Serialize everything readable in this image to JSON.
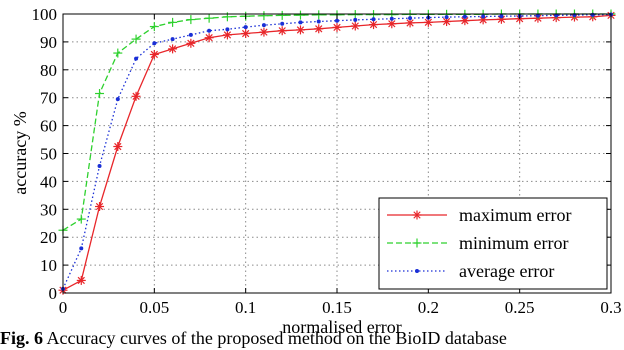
{
  "chart_data": {
    "type": "line",
    "xlabel": "normalised error",
    "ylabel": "accuracy %",
    "xlim": [
      0,
      0.3
    ],
    "ylim": [
      0,
      100
    ],
    "xticks": [
      0,
      0.05,
      0.1,
      0.15,
      0.2,
      0.25,
      0.3
    ],
    "xtick_labels": [
      "0",
      "0.05",
      "0.1",
      "0.15",
      "0.2",
      "0.25",
      "0.3"
    ],
    "yticks": [
      0,
      10,
      20,
      30,
      40,
      50,
      60,
      70,
      80,
      90,
      100
    ],
    "ytick_labels": [
      "0",
      "10",
      "20",
      "30",
      "40",
      "50",
      "60",
      "70",
      "80",
      "90",
      "100"
    ],
    "grid": true,
    "legend_position": "bottom-right",
    "x": [
      0,
      0.01,
      0.02,
      0.03,
      0.04,
      0.05,
      0.06,
      0.07,
      0.08,
      0.09,
      0.1,
      0.11,
      0.12,
      0.13,
      0.14,
      0.15,
      0.16,
      0.17,
      0.18,
      0.19,
      0.2,
      0.21,
      0.22,
      0.23,
      0.24,
      0.25,
      0.26,
      0.27,
      0.28,
      0.29,
      0.3
    ],
    "series": [
      {
        "name": "maximum error",
        "color": "#e8262a",
        "line_style": "solid",
        "marker": "asterisk",
        "values": [
          1,
          4.5,
          31,
          52.5,
          70.5,
          85.5,
          87.5,
          89.5,
          91.5,
          92.5,
          93,
          93.5,
          94,
          94.3,
          94.7,
          95.2,
          95.7,
          96.2,
          96.5,
          96.8,
          97,
          97.3,
          97.6,
          97.9,
          98.1,
          98.3,
          98.5,
          98.7,
          98.9,
          99,
          99.5
        ]
      },
      {
        "name": "minimum error",
        "color": "#2ed12e",
        "line_style": "dashed",
        "marker": "plus",
        "values": [
          22.5,
          26.5,
          71.5,
          86,
          91,
          95.5,
          97,
          98,
          98.5,
          99,
          99.2,
          99.4,
          99.5,
          99.6,
          99.7,
          99.7,
          99.8,
          99.8,
          99.8,
          99.9,
          99.9,
          99.9,
          99.9,
          99.9,
          100,
          100,
          100,
          100,
          100,
          100,
          100
        ]
      },
      {
        "name": "average error",
        "color": "#1a2fd6",
        "line_style": "dotted",
        "marker": "dot",
        "values": [
          1.5,
          16,
          45.5,
          69.5,
          84,
          89.5,
          91,
          92.5,
          94,
          94.5,
          95.3,
          96,
          96.5,
          97,
          97.3,
          97.6,
          97.9,
          98.1,
          98.3,
          98.5,
          98.7,
          98.9,
          99,
          99.1,
          99.2,
          99.3,
          99.4,
          99.5,
          99.6,
          99.7,
          99.8
        ]
      }
    ]
  },
  "caption": {
    "fig_no": "Fig. 6",
    "text": " Accuracy curves of the proposed method on the BioID database"
  }
}
